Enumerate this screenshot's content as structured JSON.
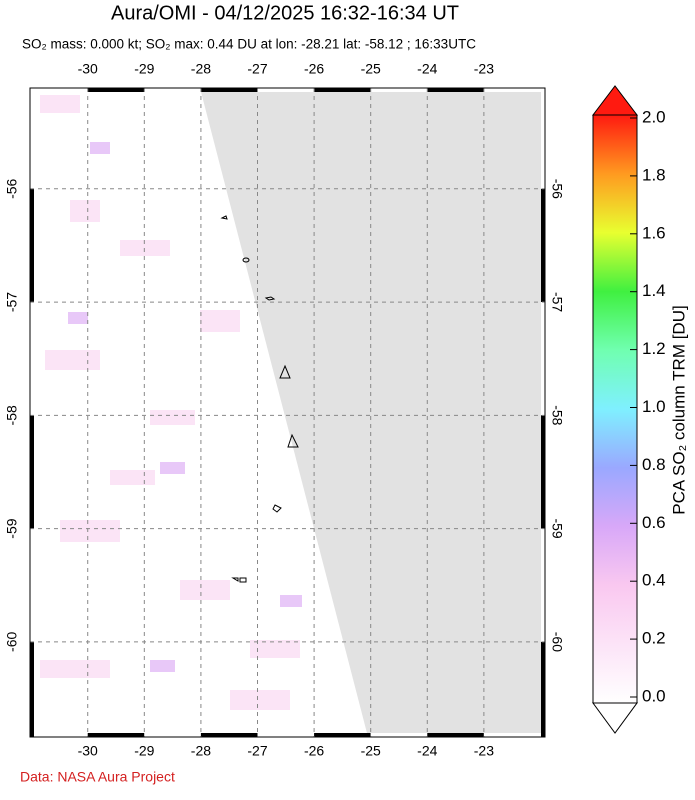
{
  "title": "Aura/OMI - 04/12/2025 16:32-16:34 UT",
  "subtitle": "SO₂ mass: 0.000 kt; SO₂ max: 0.44 DU at lon: -28.21 lat: -58.12 ; 16:33UTC",
  "footer": "Data: NASA Aura Project",
  "map": {
    "xlim": [
      -31.02,
      -21.92
    ],
    "ylim": [
      -60.84,
      -55.11
    ],
    "xticks": [
      -30,
      -29,
      -28,
      -27,
      -26,
      -25,
      -24,
      -23
    ],
    "yticks": [
      -56,
      -57,
      -58,
      -59,
      -60
    ]
  },
  "colorbar": {
    "label": "PCA SO₂ column TRM [DU]",
    "range": [
      0,
      2
    ],
    "ticks": [
      {
        "value": 0,
        "label": "0.0"
      },
      {
        "value": 0.2,
        "label": "0.2"
      },
      {
        "value": 0.4,
        "label": "0.4"
      },
      {
        "value": 0.6,
        "label": "0.6"
      },
      {
        "value": 0.8,
        "label": "0.8"
      },
      {
        "value": 1,
        "label": "1.0"
      },
      {
        "value": 1.2,
        "label": "1.2"
      },
      {
        "value": 1.4,
        "label": "1.4"
      },
      {
        "value": 1.6,
        "label": "1.6"
      },
      {
        "value": 1.8,
        "label": "1.8"
      },
      {
        "value": 2,
        "label": "2.0"
      }
    ]
  }
}
